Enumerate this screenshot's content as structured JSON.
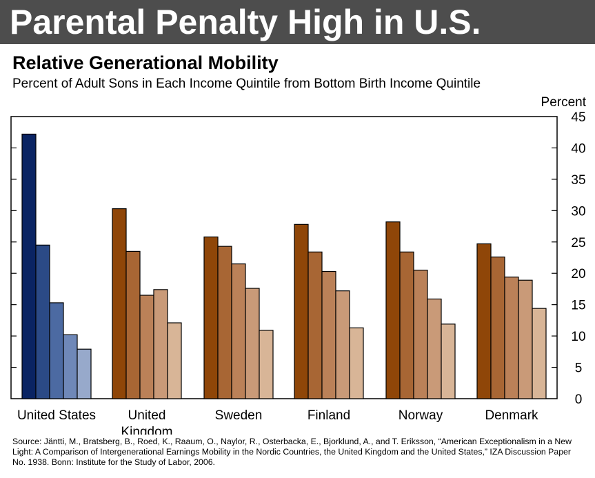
{
  "banner": {
    "title": "Parental Penalty High in U.S."
  },
  "chart_data": {
    "type": "bar",
    "title": "Relative Generational Mobility",
    "subtitle": "Percent of Adult Sons in Each Income Quintile from Bottom Birth Income Quintile",
    "ylabel": "Percent",
    "ylim": [
      0,
      45
    ],
    "yticks": [
      "0",
      "5",
      "10",
      "15",
      "20",
      "25",
      "30",
      "35",
      "40",
      "45"
    ],
    "y_axis_side": "right",
    "grid": false,
    "legend": "none",
    "categories": [
      [
        "United States"
      ],
      [
        "United",
        "Kingdom"
      ],
      [
        "Sweden"
      ],
      [
        "Finland"
      ],
      [
        "Norway"
      ],
      [
        "Denmark"
      ]
    ],
    "groups": [
      {
        "values": [
          42.2,
          24.5,
          15.3,
          10.2,
          7.9
        ]
      },
      {
        "values": [
          30.3,
          23.5,
          16.5,
          17.4,
          12.1
        ]
      },
      {
        "values": [
          25.8,
          24.3,
          21.5,
          17.6,
          10.9
        ]
      },
      {
        "values": [
          27.8,
          23.4,
          20.3,
          17.2,
          11.3
        ]
      },
      {
        "values": [
          28.2,
          23.4,
          20.5,
          15.9,
          11.9
        ]
      },
      {
        "values": [
          24.7,
          22.6,
          19.4,
          18.9,
          14.4
        ]
      }
    ],
    "colors": {
      "us": [
        "#0a2463",
        "#2b4a86",
        "#4c6aa2",
        "#6f88b8",
        "#97a9cb"
      ],
      "others": [
        "#8f4608",
        "#a86634",
        "#bb8158",
        "#c99a78",
        "#d8b597"
      ]
    }
  },
  "source": "Source: Jäntti, M., Bratsberg, B., Roed, K., Raaum, O., Naylor, R., Osterbacka, E., Bjorklund, A., and T. Eriksson, “American Exceptionalism in a New Light: A Comparison of Intergenerational Earnings Mobility in the Nordic Countries, the United Kingdom and the United States,” IZA Discussion Paper No. 1938. Bonn: Institute for the Study of Labor, 2006."
}
